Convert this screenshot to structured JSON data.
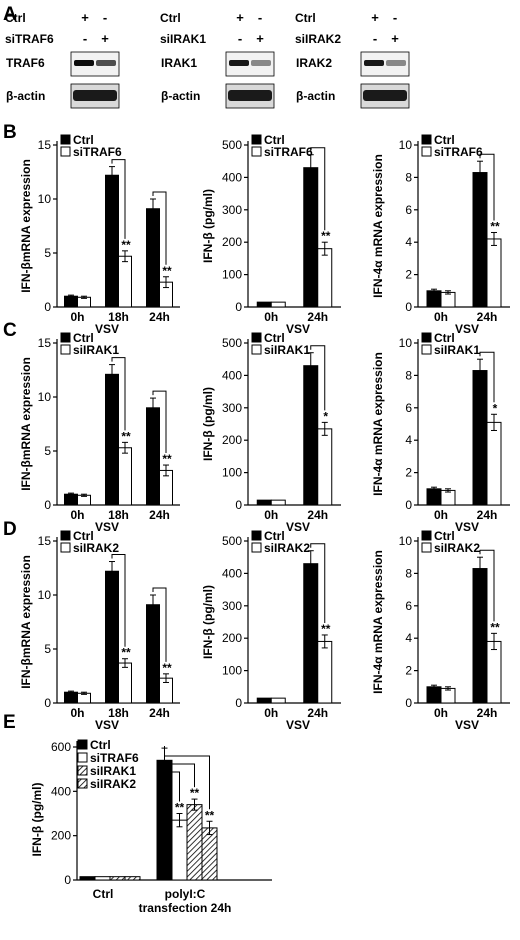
{
  "panel_labels": [
    "A",
    "B",
    "C",
    "D",
    "E"
  ],
  "blots": {
    "ctrl_label": "Ctrl",
    "plus": "+",
    "minus": "-",
    "groups": [
      {
        "si_label": "siTRAF6",
        "target": "TRAF6",
        "loading": "β-actin"
      },
      {
        "si_label": "siIRAK1",
        "target": "IRAK1",
        "loading": "β-actin"
      },
      {
        "si_label": "siIRAK2",
        "target": "IRAK2",
        "loading": "β-actin"
      }
    ]
  },
  "text": {
    "vsv": "VSV",
    "ylabel_ifnb_mrna": "IFN-βmRNA expression",
    "ylabel_ifnb_protein": "IFN-β (pg/ml)",
    "ylabel_ifn4a_mrna": "IFN-4α mRNA expression",
    "e_ylabel": "IFN-β (pg/ml)",
    "e_xlabel_line1": "polyI:C",
    "e_xlabel_line2": "transfection 24h"
  },
  "colors": {
    "ctrl": "#000000",
    "si": "#ffffff",
    "axis": "#000000"
  },
  "chart_data": [
    {
      "panel": "B",
      "type": "bar",
      "categories": [
        "0h",
        "18h",
        "24h"
      ],
      "ylim": [
        0,
        15
      ],
      "yticks": [
        0,
        5,
        10,
        15
      ],
      "legend": "top-left",
      "series": [
        {
          "name": "Ctrl",
          "values": [
            1,
            12.2,
            9.1
          ],
          "errors": [
            0.1,
            0.8,
            0.9
          ]
        },
        {
          "name": "siTRAF6",
          "values": [
            0.9,
            4.7,
            2.3
          ],
          "errors": [
            0.1,
            0.5,
            0.5
          ]
        }
      ],
      "significance": [
        "",
        "**",
        "**"
      ]
    },
    {
      "panel": "B",
      "type": "bar",
      "categories": [
        "0h",
        "24h"
      ],
      "ylim": [
        0,
        500
      ],
      "yticks": [
        0,
        100,
        200,
        300,
        400,
        500
      ],
      "legend": "top-left",
      "series": [
        {
          "name": "Ctrl",
          "values": [
            15,
            430
          ],
          "errors": [
            0,
            40
          ]
        },
        {
          "name": "siTRAF6",
          "values": [
            15,
            180
          ],
          "errors": [
            0,
            20
          ]
        }
      ],
      "significance": [
        "",
        "**"
      ]
    },
    {
      "panel": "B",
      "type": "bar",
      "categories": [
        "0h",
        "24h"
      ],
      "ylim": [
        0,
        10
      ],
      "yticks": [
        0,
        2,
        4,
        6,
        8,
        10
      ],
      "legend": "top-left",
      "series": [
        {
          "name": "Ctrl",
          "values": [
            1,
            8.3
          ],
          "errors": [
            0.1,
            0.7
          ]
        },
        {
          "name": "siTRAF6",
          "values": [
            0.9,
            4.2
          ],
          "errors": [
            0.1,
            0.4
          ]
        }
      ],
      "significance": [
        "",
        "**"
      ]
    },
    {
      "panel": "C",
      "type": "bar",
      "categories": [
        "0h",
        "18h",
        "24h"
      ],
      "ylim": [
        0,
        15
      ],
      "yticks": [
        0,
        5,
        10,
        15
      ],
      "legend": "top-left",
      "series": [
        {
          "name": "Ctrl",
          "values": [
            1,
            12.1,
            9
          ],
          "errors": [
            0.1,
            0.9,
            0.9
          ]
        },
        {
          "name": "siIRAK1",
          "values": [
            0.9,
            5.3,
            3.2
          ],
          "errors": [
            0.1,
            0.5,
            0.5
          ]
        }
      ],
      "significance": [
        "",
        "**",
        "**"
      ]
    },
    {
      "panel": "C",
      "type": "bar",
      "categories": [
        "0h",
        "24h"
      ],
      "ylim": [
        0,
        500
      ],
      "yticks": [
        0,
        100,
        200,
        300,
        400,
        500
      ],
      "legend": "top-left",
      "series": [
        {
          "name": "Ctrl",
          "values": [
            15,
            430
          ],
          "errors": [
            0,
            40
          ]
        },
        {
          "name": "siIRAK1",
          "values": [
            15,
            235
          ],
          "errors": [
            0,
            20
          ]
        }
      ],
      "significance": [
        "",
        "*"
      ]
    },
    {
      "panel": "C",
      "type": "bar",
      "categories": [
        "0h",
        "24h"
      ],
      "ylim": [
        0,
        10
      ],
      "yticks": [
        0,
        2,
        4,
        6,
        8,
        10
      ],
      "legend": "top-left",
      "series": [
        {
          "name": "Ctrl",
          "values": [
            1,
            8.3
          ],
          "errors": [
            0.1,
            0.7
          ]
        },
        {
          "name": "siIRAK1",
          "values": [
            0.9,
            5.1
          ],
          "errors": [
            0.1,
            0.5
          ]
        }
      ],
      "significance": [
        "",
        "*"
      ]
    },
    {
      "panel": "D",
      "type": "bar",
      "categories": [
        "0h",
        "18h",
        "24h"
      ],
      "ylim": [
        0,
        15
      ],
      "yticks": [
        0,
        5,
        10,
        15
      ],
      "legend": "top-left",
      "series": [
        {
          "name": "Ctrl",
          "values": [
            1,
            12.2,
            9.1
          ],
          "errors": [
            0.1,
            0.9,
            0.9
          ]
        },
        {
          "name": "siIRAK2",
          "values": [
            0.9,
            3.7,
            2.3
          ],
          "errors": [
            0.1,
            0.4,
            0.4
          ]
        }
      ],
      "significance": [
        "",
        "**",
        "**"
      ]
    },
    {
      "panel": "D",
      "type": "bar",
      "categories": [
        "0h",
        "24h"
      ],
      "ylim": [
        0,
        500
      ],
      "yticks": [
        0,
        100,
        200,
        300,
        400,
        500
      ],
      "legend": "top-left",
      "series": [
        {
          "name": "Ctrl",
          "values": [
            15,
            430
          ],
          "errors": [
            0,
            40
          ]
        },
        {
          "name": "siIRAK2",
          "values": [
            15,
            190
          ],
          "errors": [
            0,
            20
          ]
        }
      ],
      "significance": [
        "",
        "**"
      ]
    },
    {
      "panel": "D",
      "type": "bar",
      "categories": [
        "0h",
        "24h"
      ],
      "ylim": [
        0,
        10
      ],
      "yticks": [
        0,
        2,
        4,
        6,
        8,
        10
      ],
      "legend": "top-left",
      "series": [
        {
          "name": "Ctrl",
          "values": [
            1,
            8.3
          ],
          "errors": [
            0.1,
            0.7
          ]
        },
        {
          "name": "siIRAK2",
          "values": [
            0.9,
            3.8
          ],
          "errors": [
            0.1,
            0.5
          ]
        }
      ],
      "significance": [
        "",
        "**"
      ]
    },
    {
      "panel": "E",
      "type": "bar",
      "categories": [
        "Ctrl",
        "polyI:C transfection 24h"
      ],
      "ylim": [
        0,
        600
      ],
      "yticks": [
        0,
        200,
        400,
        600
      ],
      "legend": "top-left",
      "series": [
        {
          "name": "Ctrl",
          "fill": "solid",
          "values": [
            15,
            540
          ],
          "errors": [
            0,
            55
          ]
        },
        {
          "name": "siTRAF6",
          "fill": "white",
          "values": [
            15,
            270
          ],
          "errors": [
            0,
            30
          ]
        },
        {
          "name": "siIRAK1",
          "fill": "hatch",
          "values": [
            15,
            340
          ],
          "errors": [
            0,
            25
          ]
        },
        {
          "name": "siIRAK2",
          "fill": "hatch",
          "values": [
            15,
            235
          ],
          "errors": [
            0,
            30
          ]
        }
      ],
      "significance": [
        "**",
        "**",
        "**"
      ]
    }
  ]
}
